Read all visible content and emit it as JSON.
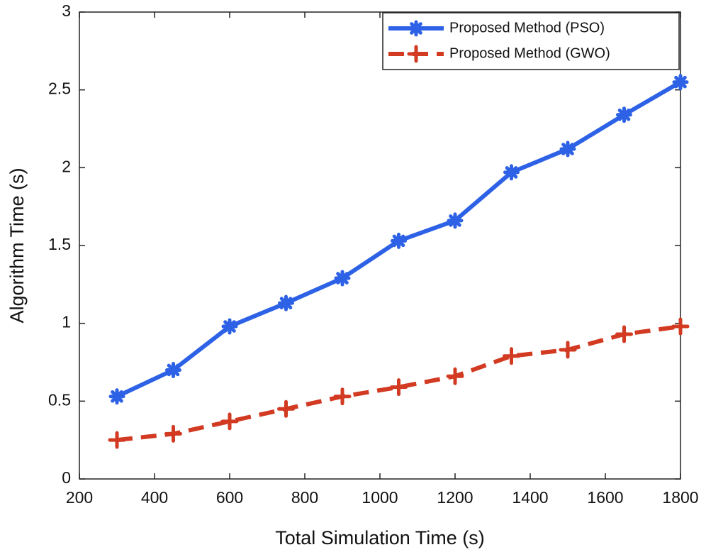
{
  "chart_data": {
    "type": "line",
    "x_label": "Total Simulation Time (s)",
    "y_label": "Algorithm Time (s)",
    "x": [
      300,
      450,
      600,
      750,
      900,
      1050,
      1200,
      1350,
      1500,
      1650,
      1800
    ],
    "series": [
      {
        "name": "Proposed Method (PSO)",
        "color": "#2d62e6",
        "marker": "asterisk",
        "dash": "solid",
        "values": [
          0.53,
          0.7,
          0.98,
          1.13,
          1.29,
          1.53,
          1.66,
          1.97,
          2.12,
          2.34,
          2.55
        ]
      },
      {
        "name": "Proposed Method (GWO)",
        "color": "#d23a22",
        "marker": "plus",
        "dash": "dashed",
        "values": [
          0.25,
          0.29,
          0.37,
          0.45,
          0.53,
          0.59,
          0.66,
          0.79,
          0.83,
          0.93,
          0.98
        ]
      }
    ],
    "xlim": [
      200,
      1800
    ],
    "xticks": [
      200,
      400,
      600,
      800,
      1000,
      1200,
      1400,
      1600,
      1800
    ],
    "ylim": [
      0,
      3
    ],
    "yticks": [
      0,
      0.5,
      1,
      1.5,
      2,
      2.5,
      3
    ],
    "grid": false,
    "legend": "top-right"
  }
}
